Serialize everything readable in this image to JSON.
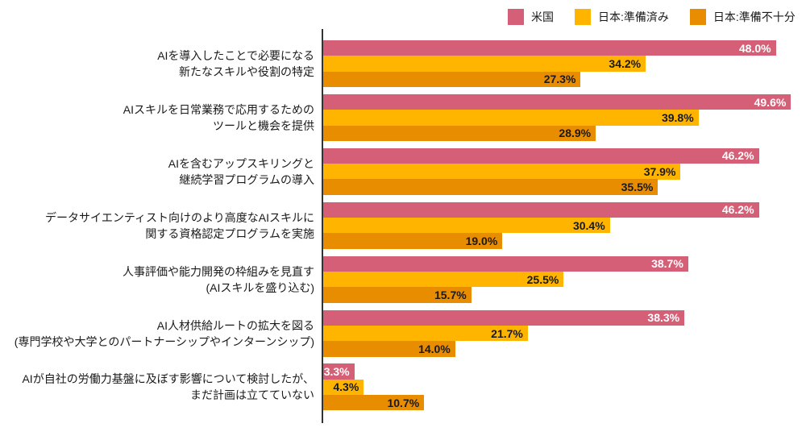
{
  "legend": [
    {
      "label": "米国",
      "color": "#D55F76"
    },
    {
      "label": "日本:準備済み",
      "color": "#FFB400"
    },
    {
      "label": "日本:準備不十分",
      "color": "#E88C00"
    }
  ],
  "chart_data": {
    "type": "bar",
    "orientation": "horizontal",
    "title": "",
    "xlabel": "",
    "ylabel": "",
    "unit": "%",
    "xlim": [
      0,
      51.3
    ],
    "grid": false,
    "legend_position": "top-right",
    "categories": [
      [
        "AIを導入したことで必要になる",
        "新たなスキルや役割の特定"
      ],
      [
        "AIスキルを日常業務で応用するための",
        "ツールと機会を提供"
      ],
      [
        "AIを含むアップスキリングと",
        "継続学習プログラムの導入"
      ],
      [
        "データサイエンティスト向けのより高度なAIスキルに",
        "関する資格認定プログラムを実施"
      ],
      [
        "人事評価や能力開発の枠組みを見直す",
        "(AIスキルを盛り込む)"
      ],
      [
        "AI人材供給ルートの拡大を図る",
        "(専門学校や大学とのパートナーシップやインターンシップ)"
      ],
      [
        "AIが自社の労働力基盤に及ぼす影響について検討したが、",
        "まだ計画は立てていない"
      ]
    ],
    "series": [
      {
        "name": "米国",
        "color": "#D55F76",
        "label_color": "#ffffff",
        "values": [
          48.0,
          49.6,
          46.2,
          46.2,
          38.7,
          38.3,
          3.3
        ]
      },
      {
        "name": "日本:準備済み",
        "color": "#FFB400",
        "label_color": "#1a1a1a",
        "values": [
          34.2,
          39.8,
          37.9,
          30.4,
          25.5,
          21.7,
          4.3
        ]
      },
      {
        "name": "日本:準備不十分",
        "color": "#E88C00",
        "label_color": "#1a1a1a",
        "values": [
          27.3,
          28.9,
          35.5,
          19.0,
          15.7,
          14.0,
          10.7
        ]
      }
    ],
    "value_label_format": "0.0%"
  }
}
